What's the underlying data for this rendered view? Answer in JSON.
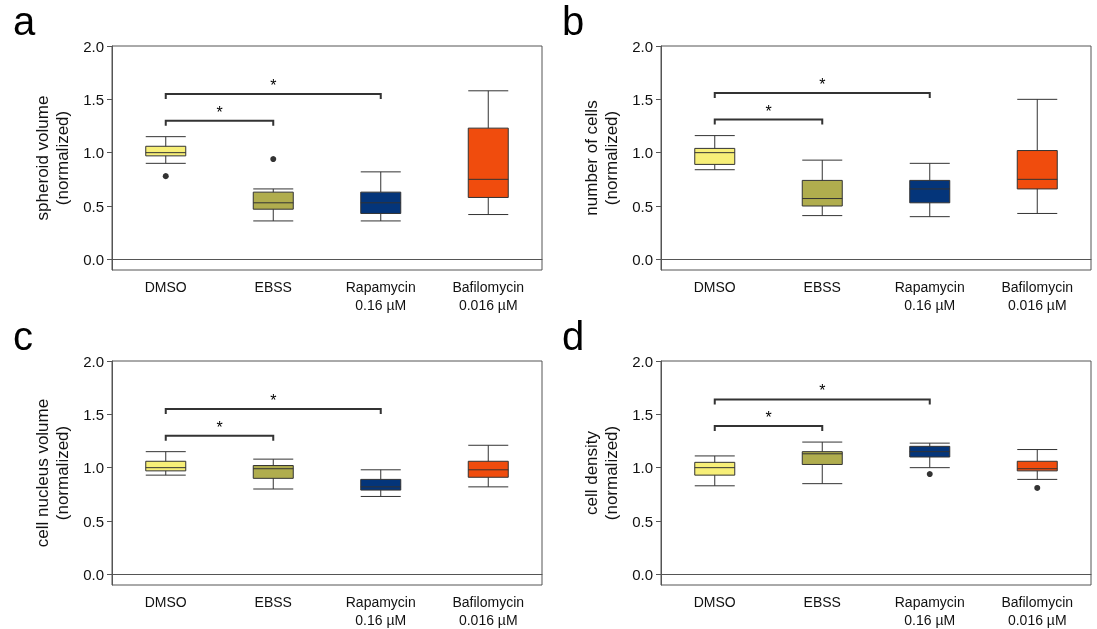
{
  "chart_data": [
    {
      "type": "box",
      "title": "a",
      "ylabel": "spheroid volume\n(normalized)",
      "categories": [
        "DMSO",
        "EBSS",
        "Rapamycin\n0.16 µM",
        "Bafilomycin\n0.016 µM"
      ],
      "colors": [
        "#f7ef78",
        "#b0ad4e",
        "#04357a",
        "#f04c0d"
      ],
      "ylim": [
        -0.1,
        2.0
      ],
      "yticks": [
        {
          "value": 0,
          "label": "0.0"
        },
        {
          "value": 0.5,
          "label": "0.5"
        },
        {
          "value": 1,
          "label": "1.0"
        },
        {
          "value": 1.5,
          "label": "1.5"
        },
        {
          "value": 2,
          "label": "2.0"
        }
      ],
      "boxes": [
        {
          "low": 0.9,
          "q1": 0.97,
          "median": 1.0,
          "q3": 1.06,
          "high": 1.15,
          "outliers": [
            0.78
          ]
        },
        {
          "low": 0.36,
          "q1": 0.47,
          "median": 0.53,
          "q3": 0.63,
          "high": 0.66,
          "outliers": [
            0.94
          ]
        },
        {
          "low": 0.36,
          "q1": 0.43,
          "median": 0.53,
          "q3": 0.63,
          "high": 0.82
        },
        {
          "low": 0.42,
          "q1": 0.58,
          "median": 0.75,
          "q3": 1.23,
          "high": 1.58
        }
      ],
      "annotations": [
        "*",
        "*"
      ]
    },
    {
      "type": "box",
      "title": "b",
      "ylabel": "number of cells\n(normalized)",
      "categories": [
        "DMSO",
        "EBSS",
        "Rapamycin\n0.16 µM",
        "Bafilomycin\n0.016 µM"
      ],
      "colors": [
        "#f7ef78",
        "#b0ad4e",
        "#04357a",
        "#f04c0d"
      ],
      "ylim": [
        -0.1,
        2.0
      ],
      "yticks": [
        {
          "value": 0,
          "label": "0.0"
        },
        {
          "value": 0.5,
          "label": "0.5"
        },
        {
          "value": 1,
          "label": "1.0"
        },
        {
          "value": 1.5,
          "label": "1.5"
        },
        {
          "value": 2,
          "label": "2.0"
        }
      ],
      "boxes": [
        {
          "low": 0.84,
          "q1": 0.89,
          "median": 1.0,
          "q3": 1.04,
          "high": 1.16
        },
        {
          "low": 0.41,
          "q1": 0.5,
          "median": 0.57,
          "q3": 0.74,
          "high": 0.93
        },
        {
          "low": 0.4,
          "q1": 0.53,
          "median": 0.66,
          "q3": 0.74,
          "high": 0.9
        },
        {
          "low": 0.43,
          "q1": 0.66,
          "median": 0.75,
          "q3": 1.02,
          "high": 1.5
        }
      ],
      "annotations": [
        "*",
        "*"
      ]
    },
    {
      "type": "box",
      "title": "c",
      "ylabel": "cell nucleus volume\n(normalized)",
      "categories": [
        "DMSO",
        "EBSS",
        "Rapamycin\n0.16 µM",
        "Bafilomycin\n0.016 µM"
      ],
      "colors": [
        "#f7ef78",
        "#b0ad4e",
        "#04357a",
        "#f04c0d"
      ],
      "ylim": [
        -0.1,
        2.0
      ],
      "yticks": [
        {
          "value": 0,
          "label": "0.0"
        },
        {
          "value": 0.5,
          "label": "0.5"
        },
        {
          "value": 1,
          "label": "1.0"
        },
        {
          "value": 1.5,
          "label": "1.5"
        },
        {
          "value": 2,
          "label": "2.0"
        }
      ],
      "boxes": [
        {
          "low": 0.93,
          "q1": 0.97,
          "median": 1.0,
          "q3": 1.06,
          "high": 1.15
        },
        {
          "low": 0.8,
          "q1": 0.9,
          "median": 0.99,
          "q3": 1.02,
          "high": 1.08
        },
        {
          "low": 0.73,
          "q1": 0.79,
          "median": 0.82,
          "q3": 0.89,
          "high": 0.98
        },
        {
          "low": 0.82,
          "q1": 0.91,
          "median": 0.98,
          "q3": 1.06,
          "high": 1.21
        }
      ],
      "annotations": [
        "*",
        "*"
      ]
    },
    {
      "type": "box",
      "title": "d",
      "ylabel": "cell density\n(normalized)",
      "categories": [
        "DMSO",
        "EBSS",
        "Rapamycin\n0.16 µM",
        "Bafilomycin\n0.016 µM"
      ],
      "colors": [
        "#f7ef78",
        "#b0ad4e",
        "#04357a",
        "#f04c0d"
      ],
      "ylim": [
        -0.1,
        2.0
      ],
      "yticks": [
        {
          "value": 0,
          "label": "0.0"
        },
        {
          "value": 0.5,
          "label": "0.5"
        },
        {
          "value": 1,
          "label": "1.0"
        },
        {
          "value": 1.5,
          "label": "1.5"
        },
        {
          "value": 2,
          "label": "2.0"
        }
      ],
      "boxes": [
        {
          "low": 0.83,
          "q1": 0.93,
          "median": 1.0,
          "q3": 1.05,
          "high": 1.11
        },
        {
          "low": 0.85,
          "q1": 1.03,
          "median": 1.13,
          "q3": 1.15,
          "high": 1.24
        },
        {
          "low": 1.0,
          "q1": 1.1,
          "median": 1.15,
          "q3": 1.2,
          "high": 1.23,
          "outliers": [
            0.94
          ]
        },
        {
          "low": 0.89,
          "q1": 0.97,
          "median": 0.99,
          "q3": 1.06,
          "high": 1.17,
          "outliers": [
            0.81
          ]
        }
      ],
      "annotations": [
        "*",
        "*"
      ]
    }
  ]
}
